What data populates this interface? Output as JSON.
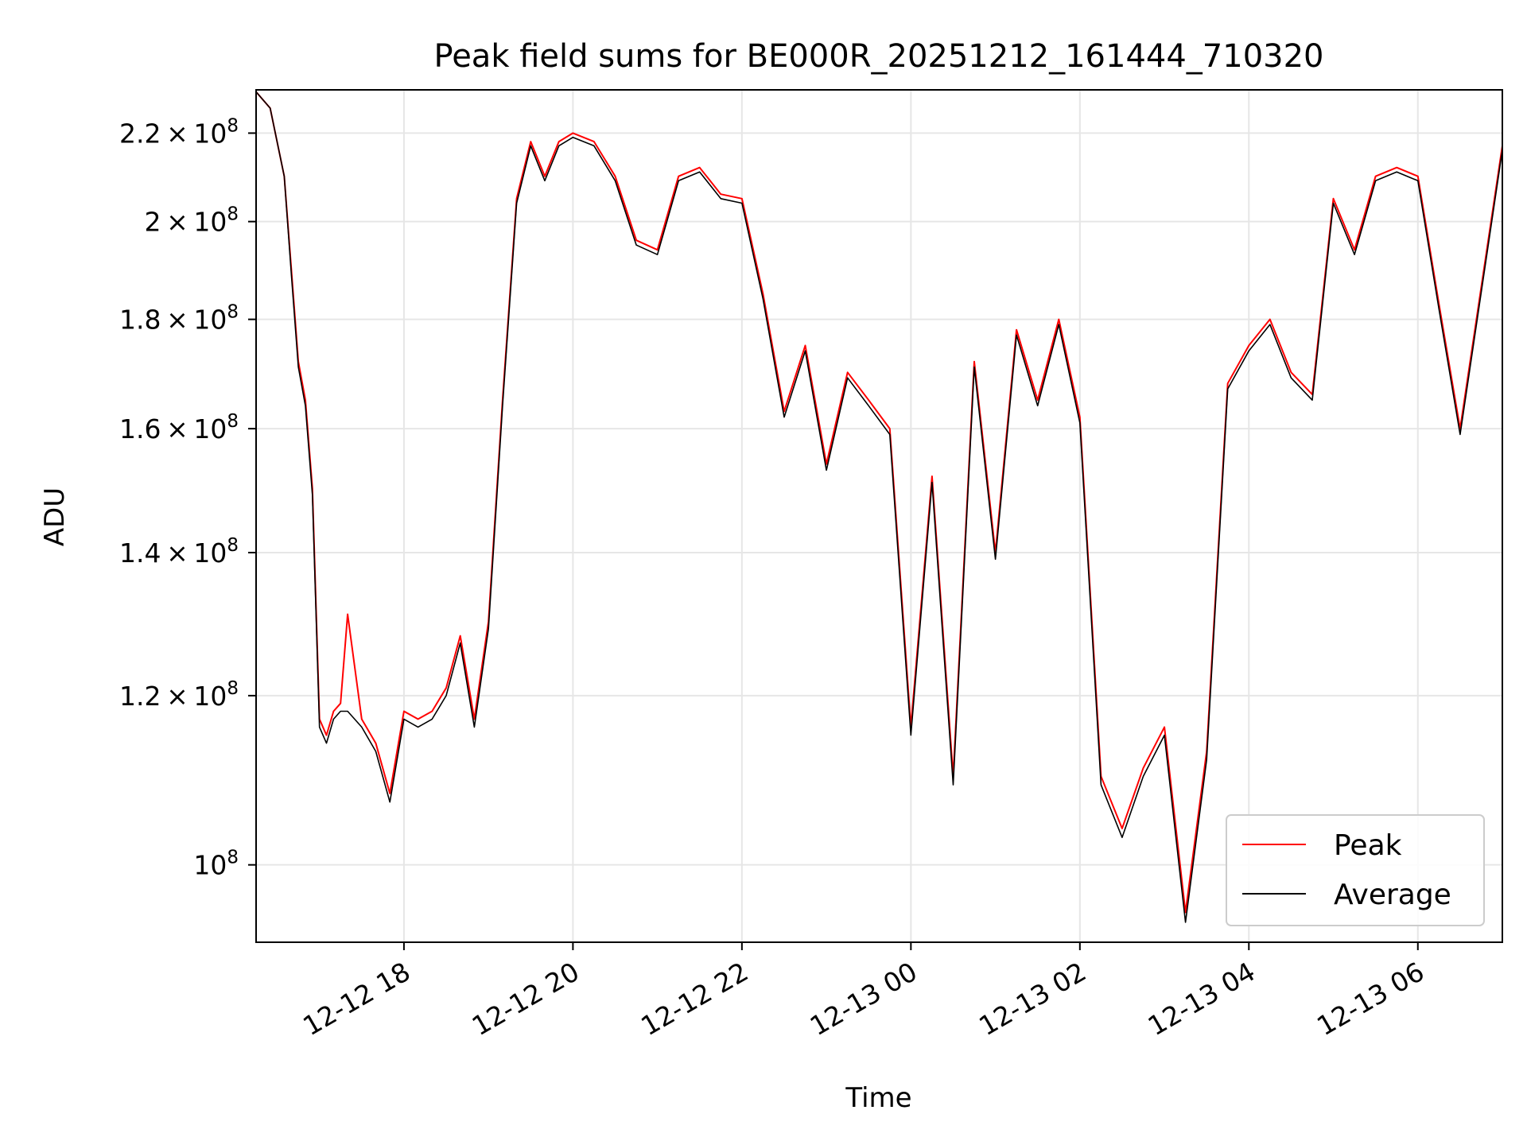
{
  "chart_data": {
    "type": "line",
    "title": "Peak field sums for BE000R_20251212_161444_710320",
    "xlabel": "Time",
    "ylabel": "ADU",
    "yscale": "log",
    "xlim": [
      "2025-12-12 16:15",
      "2025-12-13 07:00"
    ],
    "ylim": [
      92000000,
      230500000
    ],
    "grid": true,
    "legend": "bottom-right",
    "x_ticks": [
      {
        "t": "2025-12-12 18:00",
        "label": "12-12 18"
      },
      {
        "t": "2025-12-12 20:00",
        "label": "12-12 20"
      },
      {
        "t": "2025-12-12 22:00",
        "label": "12-12 22"
      },
      {
        "t": "2025-12-13 00:00",
        "label": "12-13 00"
      },
      {
        "t": "2025-12-13 02:00",
        "label": "12-13 02"
      },
      {
        "t": "2025-12-13 04:00",
        "label": "12-13 04"
      },
      {
        "t": "2025-12-13 06:00",
        "label": "12-13 06"
      }
    ],
    "y_ticks": [
      {
        "v": 100000000,
        "mant": "",
        "exp": "8"
      },
      {
        "v": 120000000,
        "mant": "1.2",
        "exp": "8"
      },
      {
        "v": 140000000,
        "mant": "1.4",
        "exp": "8"
      },
      {
        "v": 160000000,
        "mant": "1.6",
        "exp": "8"
      },
      {
        "v": 180000000,
        "mant": "1.8",
        "exp": "8"
      },
      {
        "v": 200000000,
        "mant": "2",
        "exp": "8"
      },
      {
        "v": 220000000,
        "mant": "2.2",
        "exp": "8"
      }
    ],
    "colors": {
      "peak": "#ff0000",
      "average": "#000000",
      "grid": "#e6e6e6"
    },
    "series": [
      {
        "name": "Peak",
        "color": "#ff0000",
        "x": [
          "2025-12-12 16:15",
          "2025-12-12 16:25",
          "2025-12-12 16:35",
          "2025-12-12 16:40",
          "2025-12-12 16:45",
          "2025-12-12 16:50",
          "2025-12-12 16:55",
          "2025-12-12 17:00",
          "2025-12-12 17:05",
          "2025-12-12 17:10",
          "2025-12-12 17:15",
          "2025-12-12 17:20",
          "2025-12-12 17:30",
          "2025-12-12 17:40",
          "2025-12-12 17:50",
          "2025-12-12 18:00",
          "2025-12-12 18:10",
          "2025-12-12 18:20",
          "2025-12-12 18:30",
          "2025-12-12 18:40",
          "2025-12-12 18:50",
          "2025-12-12 19:00",
          "2025-12-12 19:10",
          "2025-12-12 19:20",
          "2025-12-12 19:30",
          "2025-12-12 19:40",
          "2025-12-12 19:50",
          "2025-12-12 20:00",
          "2025-12-12 20:15",
          "2025-12-12 20:30",
          "2025-12-12 20:45",
          "2025-12-12 21:00",
          "2025-12-12 21:15",
          "2025-12-12 21:30",
          "2025-12-12 21:45",
          "2025-12-12 22:00",
          "2025-12-12 22:15",
          "2025-12-12 22:30",
          "2025-12-12 22:45",
          "2025-12-12 23:00",
          "2025-12-12 23:15",
          "2025-12-12 23:30",
          "2025-12-12 23:45",
          "2025-12-13 00:00",
          "2025-12-13 00:15",
          "2025-12-13 00:30",
          "2025-12-13 00:45",
          "2025-12-13 01:00",
          "2025-12-13 01:15",
          "2025-12-13 01:30",
          "2025-12-13 01:45",
          "2025-12-13 02:00",
          "2025-12-13 02:15",
          "2025-12-13 02:30",
          "2025-12-13 02:45",
          "2025-12-13 03:00",
          "2025-12-13 03:15",
          "2025-12-13 03:30",
          "2025-12-13 03:45",
          "2025-12-13 04:00",
          "2025-12-13 04:15",
          "2025-12-13 04:30",
          "2025-12-13 04:45",
          "2025-12-13 05:00",
          "2025-12-13 05:15",
          "2025-12-13 05:30",
          "2025-12-13 05:45",
          "2025-12-13 06:00",
          "2025-12-13 06:15",
          "2025-12-13 06:30",
          "2025-12-13 07:00"
        ],
        "y": [
          230000000,
          226000000,
          210000000,
          190000000,
          172000000,
          165000000,
          150000000,
          117000000,
          115000000,
          118000000,
          119000000,
          131000000,
          117000000,
          114000000,
          108000000,
          118000000,
          117000000,
          118000000,
          121000000,
          128000000,
          117000000,
          130000000,
          165000000,
          205000000,
          218000000,
          210000000,
          218000000,
          220000000,
          218000000,
          210000000,
          196000000,
          194000000,
          210000000,
          212000000,
          206000000,
          205000000,
          185000000,
          163000000,
          175000000,
          154000000,
          170000000,
          165000000,
          160000000,
          116000000,
          152000000,
          110000000,
          172000000,
          140000000,
          178000000,
          165000000,
          180000000,
          162000000,
          110000000,
          104000000,
          111000000,
          116000000,
          95000000,
          113000000,
          168000000,
          175000000,
          180000000,
          170000000,
          166000000,
          205000000,
          194000000,
          210000000,
          212000000,
          210000000,
          183000000,
          160000000,
          217000000
        ],
        "y_note": "approx"
      },
      {
        "name": "Average",
        "color": "#000000",
        "x": [
          "2025-12-12 16:15",
          "2025-12-12 16:25",
          "2025-12-12 16:35",
          "2025-12-12 16:40",
          "2025-12-12 16:45",
          "2025-12-12 16:50",
          "2025-12-12 16:55",
          "2025-12-12 17:00",
          "2025-12-12 17:05",
          "2025-12-12 17:10",
          "2025-12-12 17:15",
          "2025-12-12 17:20",
          "2025-12-12 17:30",
          "2025-12-12 17:40",
          "2025-12-12 17:50",
          "2025-12-12 18:00",
          "2025-12-12 18:10",
          "2025-12-12 18:20",
          "2025-12-12 18:30",
          "2025-12-12 18:40",
          "2025-12-12 18:50",
          "2025-12-12 19:00",
          "2025-12-12 19:10",
          "2025-12-12 19:20",
          "2025-12-12 19:30",
          "2025-12-12 19:40",
          "2025-12-12 19:50",
          "2025-12-12 20:00",
          "2025-12-12 20:15",
          "2025-12-12 20:30",
          "2025-12-12 20:45",
          "2025-12-12 21:00",
          "2025-12-12 21:15",
          "2025-12-12 21:30",
          "2025-12-12 21:45",
          "2025-12-12 22:00",
          "2025-12-12 22:15",
          "2025-12-12 22:30",
          "2025-12-12 22:45",
          "2025-12-12 23:00",
          "2025-12-12 23:15",
          "2025-12-12 23:30",
          "2025-12-12 23:45",
          "2025-12-13 00:00",
          "2025-12-13 00:15",
          "2025-12-13 00:30",
          "2025-12-13 00:45",
          "2025-12-13 01:00",
          "2025-12-13 01:15",
          "2025-12-13 01:30",
          "2025-12-13 01:45",
          "2025-12-13 02:00",
          "2025-12-13 02:15",
          "2025-12-13 02:30",
          "2025-12-13 02:45",
          "2025-12-13 03:00",
          "2025-12-13 03:15",
          "2025-12-13 03:30",
          "2025-12-13 03:45",
          "2025-12-13 04:00",
          "2025-12-13 04:15",
          "2025-12-13 04:30",
          "2025-12-13 04:45",
          "2025-12-13 05:00",
          "2025-12-13 05:15",
          "2025-12-13 05:30",
          "2025-12-13 05:45",
          "2025-12-13 06:00",
          "2025-12-13 06:15",
          "2025-12-13 06:30",
          "2025-12-13 07:00"
        ],
        "y": [
          230000000,
          226000000,
          210000000,
          189000000,
          171000000,
          164000000,
          149000000,
          116000000,
          114000000,
          117000000,
          118000000,
          118000000,
          116000000,
          113000000,
          107000000,
          117000000,
          116000000,
          117000000,
          120000000,
          127000000,
          116000000,
          129000000,
          164000000,
          204000000,
          217000000,
          209000000,
          217000000,
          219000000,
          217000000,
          209000000,
          195000000,
          193000000,
          209000000,
          211000000,
          205000000,
          204000000,
          184000000,
          162000000,
          174000000,
          153000000,
          169000000,
          164000000,
          159000000,
          115000000,
          151000000,
          109000000,
          171000000,
          139000000,
          177000000,
          164000000,
          179000000,
          161000000,
          109000000,
          103000000,
          110000000,
          115000000,
          94000000,
          112000000,
          167000000,
          174000000,
          179000000,
          169000000,
          165000000,
          204000000,
          193000000,
          209000000,
          211000000,
          209000000,
          182000000,
          159000000,
          216000000
        ],
        "y_note": "approx"
      }
    ]
  }
}
